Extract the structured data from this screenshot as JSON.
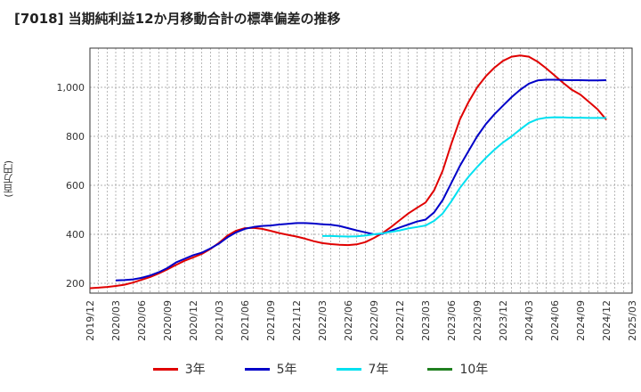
{
  "title": "[7018]  当期純利益12か月移動合計の標準偏差の推移",
  "y_unit": "(百万円)",
  "chart_data": {
    "type": "line",
    "title": "[7018]  当期純利益12か月移動合計の標準偏差の推移",
    "ylabel": "(百万円)",
    "ylim": [
      160,
      1160
    ],
    "yticks": [
      200,
      400,
      600,
      800,
      1000
    ],
    "ytick_labels": [
      "200",
      "400",
      "600",
      "800",
      "1,000"
    ],
    "xlim": [
      "2019/12",
      "2025/03"
    ],
    "xticks": [
      "2019/12",
      "2020/03",
      "2020/06",
      "2020/09",
      "2020/12",
      "2021/03",
      "2021/06",
      "2021/09",
      "2021/12",
      "2022/03",
      "2022/06",
      "2022/09",
      "2022/12",
      "2023/03",
      "2023/06",
      "2023/09",
      "2023/12",
      "2024/03",
      "2024/06",
      "2024/09",
      "2024/12",
      "2025/03"
    ],
    "grid": true,
    "legend_position": "bottom",
    "series": [
      {
        "name": "3年",
        "color": "#e00000",
        "points": [
          [
            "2019/12",
            180
          ],
          [
            "2020/01",
            182
          ],
          [
            "2020/02",
            185
          ],
          [
            "2020/03",
            189
          ],
          [
            "2020/04",
            194
          ],
          [
            "2020/05",
            203
          ],
          [
            "2020/06",
            214
          ],
          [
            "2020/07",
            226
          ],
          [
            "2020/08",
            240
          ],
          [
            "2020/09",
            257
          ],
          [
            "2020/10",
            275
          ],
          [
            "2020/11",
            292
          ],
          [
            "2020/12",
            306
          ],
          [
            "2021/01",
            320
          ],
          [
            "2021/02",
            340
          ],
          [
            "2021/03",
            365
          ],
          [
            "2021/04",
            395
          ],
          [
            "2021/05",
            415
          ],
          [
            "2021/06",
            425
          ],
          [
            "2021/07",
            426
          ],
          [
            "2021/08",
            422
          ],
          [
            "2021/09",
            414
          ],
          [
            "2021/10",
            405
          ],
          [
            "2021/11",
            398
          ],
          [
            "2021/12",
            391
          ],
          [
            "2022/01",
            382
          ],
          [
            "2022/02",
            372
          ],
          [
            "2022/03",
            364
          ],
          [
            "2022/04",
            360
          ],
          [
            "2022/05",
            357
          ],
          [
            "2022/06",
            356
          ],
          [
            "2022/07",
            359
          ],
          [
            "2022/08",
            368
          ],
          [
            "2022/09",
            385
          ],
          [
            "2022/10",
            405
          ],
          [
            "2022/11",
            430
          ],
          [
            "2022/12",
            458
          ],
          [
            "2023/01",
            485
          ],
          [
            "2023/02",
            508
          ],
          [
            "2023/03",
            530
          ],
          [
            "2023/04",
            580
          ],
          [
            "2023/05",
            660
          ],
          [
            "2023/06",
            770
          ],
          [
            "2023/07",
            870
          ],
          [
            "2023/08",
            940
          ],
          [
            "2023/09",
            1000
          ],
          [
            "2023/10",
            1045
          ],
          [
            "2023/11",
            1080
          ],
          [
            "2023/12",
            1108
          ],
          [
            "2024/01",
            1125
          ],
          [
            "2024/02",
            1130
          ],
          [
            "2024/03",
            1125
          ],
          [
            "2024/04",
            1105
          ],
          [
            "2024/05",
            1078
          ],
          [
            "2024/06",
            1048
          ],
          [
            "2024/07",
            1018
          ],
          [
            "2024/08",
            990
          ],
          [
            "2024/09",
            970
          ],
          [
            "2024/10",
            940
          ],
          [
            "2024/11",
            910
          ],
          [
            "2024/12",
            868
          ]
        ]
      },
      {
        "name": "5年",
        "color": "#0000c8",
        "points": [
          [
            "2020/03",
            212
          ],
          [
            "2020/04",
            213
          ],
          [
            "2020/05",
            216
          ],
          [
            "2020/06",
            222
          ],
          [
            "2020/07",
            232
          ],
          [
            "2020/08",
            245
          ],
          [
            "2020/09",
            262
          ],
          [
            "2020/10",
            285
          ],
          [
            "2020/11",
            300
          ],
          [
            "2020/12",
            315
          ],
          [
            "2021/01",
            325
          ],
          [
            "2021/02",
            342
          ],
          [
            "2021/03",
            362
          ],
          [
            "2021/04",
            388
          ],
          [
            "2021/05",
            408
          ],
          [
            "2021/06",
            422
          ],
          [
            "2021/07",
            430
          ],
          [
            "2021/08",
            434
          ],
          [
            "2021/09",
            436
          ],
          [
            "2021/10",
            440
          ],
          [
            "2021/11",
            443
          ],
          [
            "2021/12",
            446
          ],
          [
            "2022/01",
            446
          ],
          [
            "2022/02",
            444
          ],
          [
            "2022/03",
            441
          ],
          [
            "2022/04",
            439
          ],
          [
            "2022/05",
            434
          ],
          [
            "2022/06",
            425
          ],
          [
            "2022/07",
            416
          ],
          [
            "2022/08",
            408
          ],
          [
            "2022/09",
            400
          ],
          [
            "2022/10",
            402
          ],
          [
            "2022/11",
            415
          ],
          [
            "2022/12",
            428
          ],
          [
            "2023/01",
            440
          ],
          [
            "2023/02",
            452
          ],
          [
            "2023/03",
            460
          ],
          [
            "2023/04",
            490
          ],
          [
            "2023/05",
            540
          ],
          [
            "2023/06",
            610
          ],
          [
            "2023/07",
            680
          ],
          [
            "2023/08",
            740
          ],
          [
            "2023/09",
            800
          ],
          [
            "2023/10",
            850
          ],
          [
            "2023/11",
            890
          ],
          [
            "2023/12",
            925
          ],
          [
            "2024/01",
            960
          ],
          [
            "2024/02",
            990
          ],
          [
            "2024/03",
            1015
          ],
          [
            "2024/04",
            1028
          ],
          [
            "2024/05",
            1031
          ],
          [
            "2024/06",
            1031
          ],
          [
            "2024/07",
            1030
          ],
          [
            "2024/08",
            1029
          ],
          [
            "2024/09",
            1029
          ],
          [
            "2024/10",
            1028
          ],
          [
            "2024/11",
            1028
          ],
          [
            "2024/12",
            1029
          ]
        ]
      },
      {
        "name": "7年",
        "color": "#00e0f0",
        "points": [
          [
            "2022/03",
            393
          ],
          [
            "2022/04",
            393
          ],
          [
            "2022/05",
            392
          ],
          [
            "2022/06",
            391
          ],
          [
            "2022/07",
            392
          ],
          [
            "2022/08",
            395
          ],
          [
            "2022/09",
            400
          ],
          [
            "2022/10",
            404
          ],
          [
            "2022/11",
            410
          ],
          [
            "2022/12",
            416
          ],
          [
            "2023/01",
            424
          ],
          [
            "2023/02",
            430
          ],
          [
            "2023/03",
            436
          ],
          [
            "2023/04",
            455
          ],
          [
            "2023/05",
            485
          ],
          [
            "2023/06",
            535
          ],
          [
            "2023/07",
            590
          ],
          [
            "2023/08",
            635
          ],
          [
            "2023/09",
            675
          ],
          [
            "2023/10",
            712
          ],
          [
            "2023/11",
            745
          ],
          [
            "2023/12",
            775
          ],
          [
            "2024/01",
            800
          ],
          [
            "2024/02",
            828
          ],
          [
            "2024/03",
            855
          ],
          [
            "2024/04",
            870
          ],
          [
            "2024/05",
            876
          ],
          [
            "2024/06",
            878
          ],
          [
            "2024/07",
            877
          ],
          [
            "2024/08",
            876
          ],
          [
            "2024/09",
            876
          ],
          [
            "2024/10",
            875
          ],
          [
            "2024/11",
            875
          ],
          [
            "2024/12",
            875
          ]
        ]
      },
      {
        "name": "10年",
        "color": "#208020",
        "points": []
      }
    ]
  }
}
